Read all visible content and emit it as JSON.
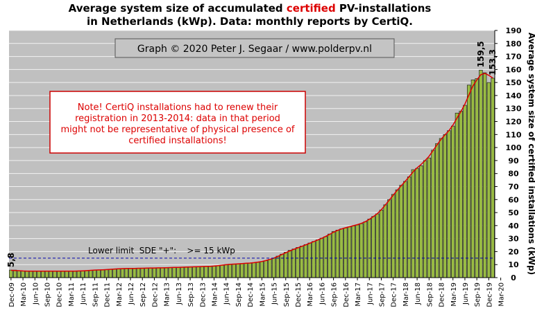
{
  "title": {
    "line1_pre": "Average system size of accumulated ",
    "line1_red": "certified",
    "line1_post": " PV-installations",
    "line2": "in Netherlands (kWp). Data: monthly reports by CertiQ."
  },
  "chart_data": {
    "type": "bar",
    "colors": {
      "bar": "#99bb44",
      "bar_edge": "#222222",
      "trend": "#dd0000",
      "plot_bg": "#c0c0c0",
      "grid": "#f2f2f2",
      "limit": "#0000aa"
    },
    "credit": "Graph © 2020 Peter J. Segaar / www.polderpv.nl",
    "note": [
      "Note! CertiQ installations had to renew their",
      "registration in 2013-2014: data in that period",
      "might not be representative of physical presence of",
      "certified installations!"
    ],
    "ylabel": "Average system size of certified installations (kWp)",
    "y_axis_side": "right",
    "ylim": [
      0,
      190
    ],
    "yticks": [
      0,
      10,
      20,
      30,
      40,
      50,
      60,
      70,
      80,
      90,
      100,
      110,
      120,
      130,
      140,
      150,
      160,
      170,
      180,
      190
    ],
    "grid": true,
    "x_tick_labels": [
      "Dec-09",
      "Mar-10",
      "Jun-10",
      "Sep-10",
      "Dec-10",
      "Mar-11",
      "Jun-11",
      "Sep-11",
      "Dec-11",
      "Mar-12",
      "Jun-12",
      "Sep-12",
      "Dec-12",
      "Mar-13",
      "Jun-13",
      "Sep-13",
      "Dec-13",
      "Mar-14",
      "Jun-14",
      "Sep-14",
      "Dec-14",
      "Mar-15",
      "Jun-15",
      "Sep-15",
      "Dec-15",
      "Mar-16",
      "Jun-16",
      "Sep-16",
      "Dec-16",
      "Mar-17",
      "Jun-17",
      "Sep-17",
      "Dec-17",
      "Mar-18",
      "Jun-18",
      "Sep-18",
      "Dec-18",
      "Mar-19",
      "Jun-19",
      "Sep-19",
      "Dec-19",
      "Mar-20"
    ],
    "start_month": "Dec-09",
    "values": [
      5.8,
      5.8,
      5.4,
      5.1,
      5.1,
      5.0,
      5.0,
      5.0,
      5.0,
      5.0,
      5.0,
      5.0,
      5.0,
      5.0,
      5.0,
      5.0,
      5.0,
      5.0,
      5.2,
      5.4,
      5.6,
      5.8,
      5.9,
      6.0,
      6.2,
      6.4,
      6.6,
      6.8,
      7.0,
      7.0,
      7.0,
      7.1,
      7.2,
      7.3,
      7.3,
      7.4,
      7.5,
      7.5,
      7.5,
      7.6,
      7.7,
      7.8,
      7.9,
      8.0,
      8.1,
      8.2,
      8.3,
      8.4,
      8.5,
      8.6,
      8.7,
      8.8,
      9.1,
      9.6,
      10.0,
      10.3,
      10.5,
      10.6,
      10.8,
      11.0,
      11.2,
      11.5,
      11.8,
      12.3,
      13.0,
      14.0,
      15.0,
      16.5,
      18.0,
      19.5,
      21.0,
      22.0,
      23.2,
      24.2,
      25.4,
      26.6,
      27.8,
      29.0,
      30.3,
      31.5,
      33.5,
      35.5,
      36.5,
      37.5,
      38.2,
      39.0,
      39.8,
      40.5,
      41.5,
      43.0,
      45.0,
      47.0,
      49.0,
      52.0,
      56.0,
      60.0,
      64.0,
      67.5,
      71.0,
      74.0,
      77.5,
      83.0,
      84.0,
      86.0,
      90.0,
      92.0,
      98.0,
      103.0,
      107.0,
      110.0,
      113.0,
      116.5,
      126.5,
      128.0,
      132.5,
      148.0,
      152.0,
      153.0,
      159.5,
      157.5,
      150.0,
      153.3
    ],
    "trend_values": [
      5.6,
      5.5,
      5.3,
      5.1,
      5.0,
      5.0,
      5.0,
      5.0,
      5.0,
      5.0,
      5.0,
      5.0,
      5.0,
      5.0,
      5.0,
      5.0,
      5.0,
      5.1,
      5.2,
      5.4,
      5.6,
      5.8,
      5.9,
      6.0,
      6.2,
      6.4,
      6.6,
      6.8,
      6.9,
      7.0,
      7.0,
      7.1,
      7.2,
      7.2,
      7.3,
      7.4,
      7.4,
      7.5,
      7.5,
      7.6,
      7.7,
      7.8,
      7.9,
      8.0,
      8.1,
      8.2,
      8.3,
      8.4,
      8.5,
      8.6,
      8.7,
      8.9,
      9.2,
      9.6,
      9.9,
      10.2,
      10.4,
      10.6,
      10.8,
      11.0,
      11.2,
      11.5,
      11.9,
      12.4,
      13.1,
      14.0,
      15.0,
      16.3,
      17.7,
      19.1,
      20.5,
      21.7,
      22.9,
      24.0,
      25.2,
      26.4,
      27.6,
      28.9,
      30.2,
      31.6,
      33.2,
      34.9,
      36.3,
      37.4,
      38.3,
      39.1,
      39.9,
      40.7,
      41.7,
      43.0,
      44.8,
      46.9,
      49.2,
      52.2,
      55.8,
      59.6,
      63.4,
      67.1,
      70.6,
      74.0,
      77.6,
      81.4,
      84.4,
      87.0,
      90.0,
      93.3,
      97.7,
      102.1,
      106.3,
      109.8,
      113.0,
      117.3,
      122.6,
      127.6,
      133.4,
      140.4,
      147.2,
      152.0,
      156.0,
      157.0,
      155.5,
      153.5
    ],
    "annotations": [
      {
        "text": "5,8",
        "index": 0,
        "value": 5.8
      },
      {
        "text": "159,5",
        "index": 118,
        "value": 159.5
      },
      {
        "text": "153,3",
        "index": 121,
        "value": 153.3
      }
    ],
    "limit_line": {
      "value": 15,
      "label": "Lower limit  SDE \"+\":    >= 15 kWp"
    }
  }
}
